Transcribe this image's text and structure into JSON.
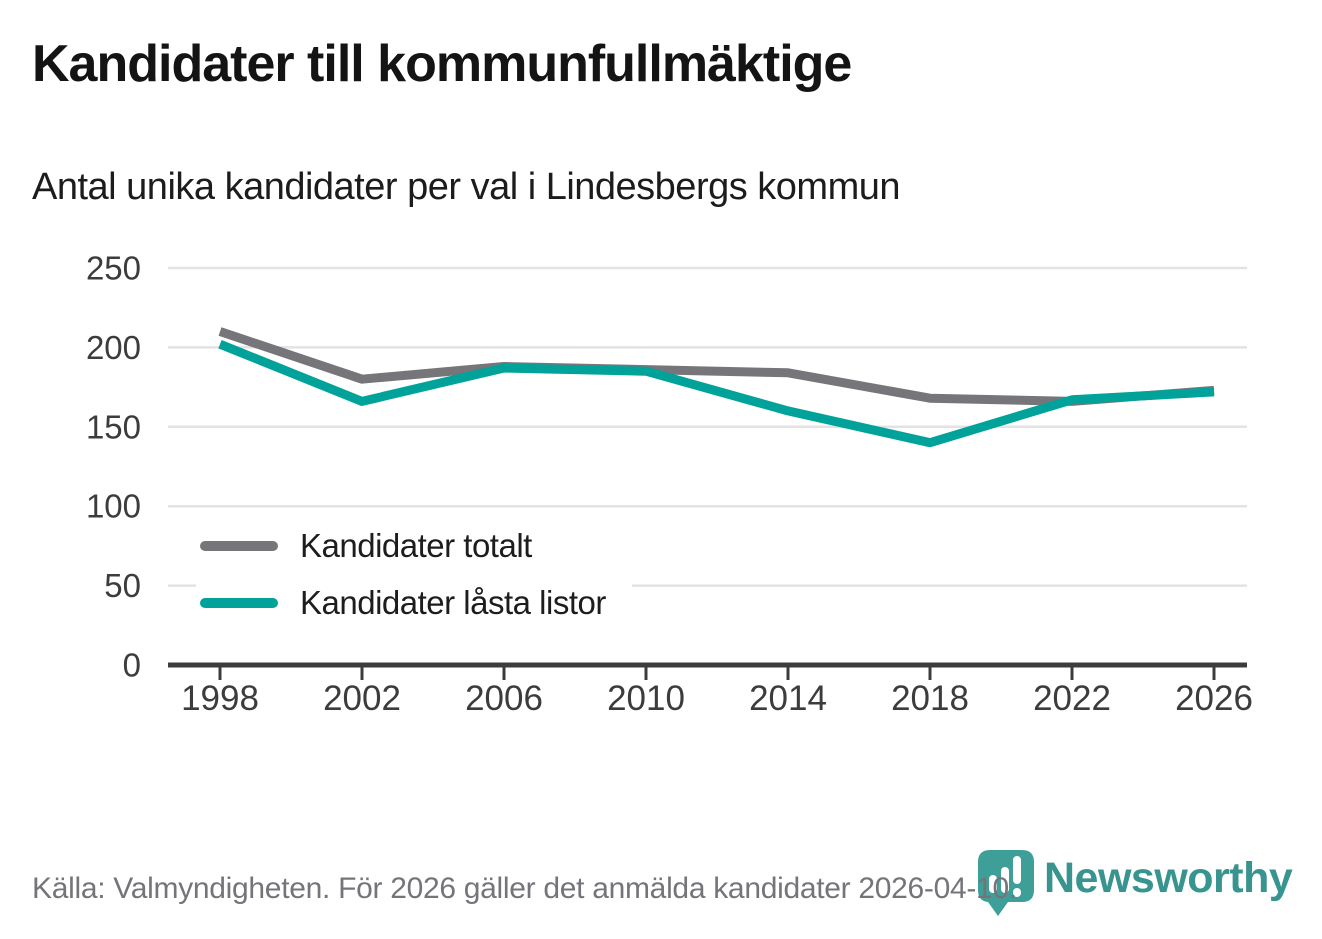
{
  "header": {
    "title": "Kandidater till kommunfullmäktige",
    "subtitle": "Antal unika kandidater per val i Lindesbergs kommun"
  },
  "chart_data": {
    "type": "line",
    "title": "Kandidater till kommunfullmäktige",
    "subtitle": "Antal unika kandidater per val i Lindesbergs kommun",
    "categories": [
      "1998",
      "2002",
      "2006",
      "2010",
      "2014",
      "2018",
      "2022",
      "2026"
    ],
    "series": [
      {
        "name": "Kandidater totalt",
        "color": "#76767a",
        "values": [
          210,
          180,
          188,
          186,
          184,
          168,
          166,
          173
        ]
      },
      {
        "name": "Kandidater låsta listor",
        "color": "#00a29a",
        "values": [
          202,
          166,
          187,
          185,
          160,
          140,
          167,
          172
        ]
      }
    ],
    "xlabel": "",
    "ylabel": "",
    "ylim": [
      0,
      250
    ],
    "yticks": [
      0,
      50,
      100,
      150,
      200,
      250
    ],
    "grid": true,
    "legend_position": "inside-left"
  },
  "footer": {
    "source": "Källa: Valmyndigheten. För 2026 gäller det anmälda kandidater 2026-04-10.",
    "brand": "Newsworthy"
  },
  "colors": {
    "grid": "#e3e3e3",
    "axis": "#3c3c3c",
    "axis_text": "#3c3c3c",
    "logo_pin": "#3e9e98",
    "logo_text": "#38948e"
  }
}
